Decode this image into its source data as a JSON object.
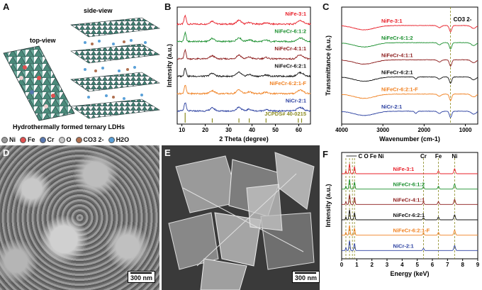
{
  "panel_labels": [
    "A",
    "B",
    "C",
    "D",
    "E",
    "F"
  ],
  "panel_a": {
    "top_view": "top-view",
    "side_view": "side-view",
    "caption": "Hydrothermally formed ternary LDHs",
    "legend": [
      {
        "label": "Ni",
        "color": "#9a9a9a"
      },
      {
        "label": "Fe",
        "color": "#e05050"
      },
      {
        "label": "Cr",
        "color": "#5878b0"
      },
      {
        "label": "O",
        "color": "#c8c8c8"
      },
      {
        "label": "CO3 2-",
        "color": "#b07050"
      },
      {
        "label": "H2O",
        "color": "#5aa0d8"
      }
    ]
  },
  "chart_data": [
    {
      "type": "line",
      "panel": "B",
      "xlabel": "2 Theta (degree)",
      "ylabel": "Intensity (a.u.)",
      "xlim": [
        8,
        65
      ],
      "xticks": [
        10,
        20,
        30,
        40,
        50,
        60
      ],
      "series": [
        {
          "name": "NiFe-3:1",
          "color": "#e8202a"
        },
        {
          "name": "NiFeCr-6:1:2",
          "color": "#1a8f2e"
        },
        {
          "name": "NiFeCr-4:1:1",
          "color": "#8b1a1a"
        },
        {
          "name": "NiFeCr-6:2:1",
          "color": "#111111"
        },
        {
          "name": "NiFeCr-6:2:1-F",
          "color": "#f08020"
        },
        {
          "name": "NiCr-2:1",
          "color": "#2a3fa0"
        }
      ],
      "reference": {
        "name": "JCPDS# 40-0215",
        "color": "#8a8a20",
        "peaks": [
          11.4,
          23.0,
          34.4,
          38.8,
          46.0,
          59.8,
          61.2
        ]
      }
    },
    {
      "type": "line",
      "panel": "C",
      "xlabel": "Wavenumber (cm-1)",
      "ylabel": "Transmittance (a.u.)",
      "xlim": [
        4000,
        700
      ],
      "xticks": [
        4000,
        3000,
        2000,
        1000
      ],
      "annotation": "CO3 2-",
      "series": [
        {
          "name": "NiFe-3:1",
          "color": "#e8202a"
        },
        {
          "name": "NiFeCr-6:1:2",
          "color": "#1a8f2e"
        },
        {
          "name": "NiFeCr-4:1:1",
          "color": "#8b1a1a"
        },
        {
          "name": "NiFeCr-6:2:1",
          "color": "#111111"
        },
        {
          "name": "NiFeCr-6:2:1-F",
          "color": "#f08020"
        },
        {
          "name": "NiCr-2:1",
          "color": "#2a3fa0"
        }
      ]
    },
    {
      "type": "line",
      "panel": "F",
      "xlabel": "Energy (keV)",
      "ylabel": "Intensity (a.u.)",
      "xlim": [
        0,
        9
      ],
      "xticks": [
        0,
        1,
        2,
        3,
        4,
        5,
        6,
        7,
        8,
        9
      ],
      "element_lines": [
        {
          "label": "C",
          "x": 0.28
        },
        {
          "label": "O",
          "x": 0.52
        },
        {
          "label": "Fe",
          "x": 0.71
        },
        {
          "label": "Ni",
          "x": 0.85
        },
        {
          "label": "Cr",
          "x": 5.41
        },
        {
          "label": "Fe",
          "x": 6.4
        },
        {
          "label": "Ni",
          "x": 7.47
        }
      ],
      "series": [
        {
          "name": "NiFe-3:1",
          "color": "#e8202a"
        },
        {
          "name": "NiFeCr-6:1:2",
          "color": "#1a8f2e"
        },
        {
          "name": "NiFeCr-4:1:1",
          "color": "#8b1a1a"
        },
        {
          "name": "NiFeCr-6:2:1",
          "color": "#111111"
        },
        {
          "name": "NiFeCr-6:2:1-F",
          "color": "#f08020"
        },
        {
          "name": "NiCr-2:1",
          "color": "#2a3fa0"
        }
      ]
    }
  ],
  "sem": {
    "d_scale": "300 nm",
    "e_scale": "300 nm"
  }
}
